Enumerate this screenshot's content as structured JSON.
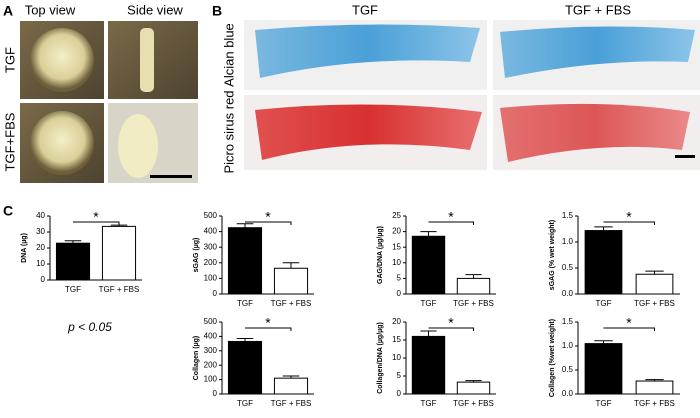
{
  "panel_a": {
    "label": "A",
    "columns": [
      "Top view",
      "Side view"
    ],
    "rows": [
      "TGF",
      "TGF+FBS"
    ]
  },
  "panel_b": {
    "label": "B",
    "columns": [
      "TGF",
      "TGF + FBS"
    ],
    "rows": [
      "Alcian blue",
      "Picro sirus red"
    ]
  },
  "panel_c": {
    "label": "C",
    "note": "p < 0.05"
  },
  "chart_data": [
    {
      "type": "bar",
      "y_label": "DNA (µg)",
      "categories": [
        "TGF",
        "TGF + FBS"
      ],
      "values": [
        23,
        33.5
      ],
      "errors": [
        1.5,
        0.8
      ],
      "colors": [
        "#000000",
        "#ffffff"
      ],
      "ylim": [
        0,
        40
      ],
      "yticks": [
        0,
        10,
        20,
        30,
        40
      ],
      "annotation": "*"
    },
    {
      "type": "bar",
      "y_label": "sGAG (µg)",
      "categories": [
        "TGF",
        "TGF + FBS"
      ],
      "values": [
        425,
        165
      ],
      "errors": [
        25,
        35
      ],
      "colors": [
        "#000000",
        "#ffffff"
      ],
      "ylim": [
        0,
        500
      ],
      "yticks": [
        0,
        100,
        200,
        300,
        400,
        500
      ],
      "annotation": "*"
    },
    {
      "type": "bar",
      "y_label": "GAG/DNA (µg/µg)",
      "categories": [
        "TGF",
        "TGF + FBS"
      ],
      "values": [
        18.5,
        5
      ],
      "errors": [
        1.5,
        1.2
      ],
      "colors": [
        "#000000",
        "#ffffff"
      ],
      "ylim": [
        0,
        25
      ],
      "yticks": [
        0,
        5,
        10,
        15,
        20,
        25
      ],
      "annotation": "*"
    },
    {
      "type": "bar",
      "y_label": "sGAG (% wet weight)",
      "categories": [
        "TGF",
        "TGF + FBS"
      ],
      "values": [
        1.22,
        0.38
      ],
      "errors": [
        0.07,
        0.06
      ],
      "colors": [
        "#000000",
        "#ffffff"
      ],
      "ylim": [
        0,
        1.5
      ],
      "yticks": [
        {
          "value": 0,
          "label": "0.0"
        },
        0.5,
        {
          "value": 1,
          "label": "1.0"
        },
        1.5
      ],
      "annotation": "*"
    },
    {
      "type": "bar",
      "y_label": "Collagen (µg)",
      "categories": [
        "TGF",
        "TGF + FBS"
      ],
      "values": [
        365,
        110
      ],
      "errors": [
        20,
        15
      ],
      "colors": [
        "#000000",
        "#ffffff"
      ],
      "ylim": [
        0,
        500
      ],
      "yticks": [
        0,
        100,
        200,
        300,
        400,
        500
      ],
      "annotation": "*"
    },
    {
      "type": "bar",
      "y_label": "Collagen/DNA (µg/µg)",
      "categories": [
        "TGF",
        "TGF + FBS"
      ],
      "values": [
        16,
        3.3
      ],
      "errors": [
        1.5,
        0.4
      ],
      "colors": [
        "#000000",
        "#ffffff"
      ],
      "ylim": [
        0,
        20
      ],
      "yticks": [
        0,
        5,
        10,
        15,
        20
      ],
      "annotation": "*"
    },
    {
      "type": "bar",
      "y_label": "Collagen (%wet weight)",
      "categories": [
        "TGF",
        "TGF + FBS"
      ],
      "values": [
        1.05,
        0.27
      ],
      "errors": [
        0.06,
        0.03
      ],
      "colors": [
        "#000000",
        "#ffffff"
      ],
      "ylim": [
        0,
        1.5
      ],
      "yticks": [
        {
          "value": 0,
          "label": "0.0"
        },
        0.5,
        {
          "value": 1,
          "label": "1.0"
        },
        1.5
      ],
      "annotation": "*"
    }
  ]
}
